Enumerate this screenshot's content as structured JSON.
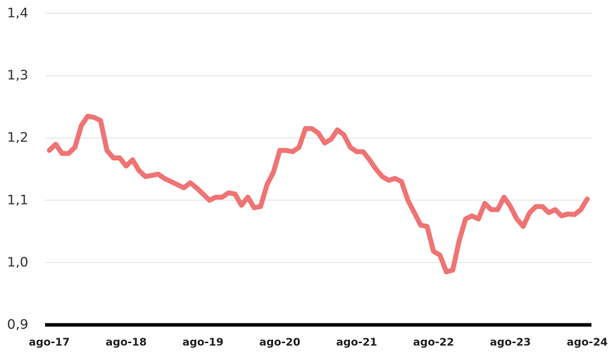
{
  "chart_data": {
    "type": "line",
    "categories": [
      "ago-17",
      null,
      null,
      null,
      null,
      null,
      null,
      null,
      null,
      null,
      null,
      null,
      "ago-18",
      null,
      null,
      null,
      null,
      null,
      null,
      null,
      null,
      null,
      null,
      null,
      "ago-19",
      null,
      null,
      null,
      null,
      null,
      null,
      null,
      null,
      null,
      null,
      null,
      "ago-20",
      null,
      null,
      null,
      null,
      null,
      null,
      null,
      null,
      null,
      null,
      null,
      "ago-21",
      null,
      null,
      null,
      null,
      null,
      null,
      null,
      null,
      null,
      null,
      null,
      "ago-22",
      null,
      null,
      null,
      null,
      null,
      null,
      null,
      null,
      null,
      null,
      null,
      "ago-23",
      null,
      null,
      null,
      null,
      null,
      null,
      null,
      null,
      null,
      null,
      null,
      "ago-24"
    ],
    "values": [
      1.18,
      1.19,
      1.175,
      1.175,
      1.185,
      1.22,
      1.235,
      1.233,
      1.228,
      1.18,
      1.168,
      1.168,
      1.155,
      1.165,
      1.148,
      1.138,
      1.14,
      1.142,
      1.135,
      1.13,
      1.125,
      1.12,
      1.128,
      1.12,
      1.11,
      1.1,
      1.105,
      1.105,
      1.112,
      1.11,
      1.092,
      1.105,
      1.088,
      1.09,
      1.125,
      1.145,
      1.18,
      1.18,
      1.178,
      1.185,
      1.215,
      1.215,
      1.208,
      1.192,
      1.198,
      1.213,
      1.205,
      1.185,
      1.178,
      1.178,
      1.165,
      1.15,
      1.138,
      1.132,
      1.135,
      1.13,
      1.1,
      1.08,
      1.06,
      1.058,
      1.018,
      1.012,
      0.985,
      0.988,
      1.035,
      1.07,
      1.075,
      1.07,
      1.095,
      1.085,
      1.085,
      1.105,
      1.09,
      1.07,
      1.058,
      1.08,
      1.09,
      1.09,
      1.08,
      1.085,
      1.075,
      1.078,
      1.077,
      1.085,
      1.102
    ],
    "color": "#f07373",
    "ylim": [
      0.9,
      1.4
    ],
    "yticks": [
      {
        "value": 0.9,
        "label": "0,9"
      },
      {
        "value": 1.0,
        "label": "1,0"
      },
      {
        "value": 1.1,
        "label": "1,1"
      },
      {
        "value": 1.2,
        "label": "1,2"
      },
      {
        "value": 1.3,
        "label": "1,3"
      },
      {
        "value": 1.4,
        "label": "1,4"
      }
    ],
    "grid": true
  }
}
